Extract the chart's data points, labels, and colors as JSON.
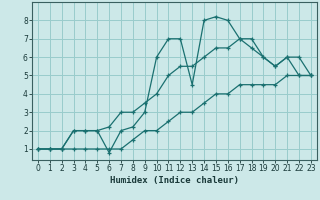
{
  "xlabel": "Humidex (Indice chaleur)",
  "background_color": "#cce8e8",
  "grid_color": "#99cccc",
  "line_color": "#1a7070",
  "xlim": [
    -0.5,
    23.5
  ],
  "ylim": [
    0.4,
    9.0
  ],
  "xticks": [
    0,
    1,
    2,
    3,
    4,
    5,
    6,
    7,
    8,
    9,
    10,
    11,
    12,
    13,
    14,
    15,
    16,
    17,
    18,
    19,
    20,
    21,
    22,
    23
  ],
  "yticks": [
    1,
    2,
    3,
    4,
    5,
    6,
    7,
    8
  ],
  "line1_x": [
    0,
    1,
    2,
    3,
    4,
    5,
    6,
    7,
    8,
    9,
    10,
    11,
    12,
    13,
    14,
    15,
    16,
    17,
    18,
    19,
    20,
    21,
    22,
    23
  ],
  "line1_y": [
    1,
    1,
    1,
    1,
    1,
    1,
    1,
    1,
    1.5,
    2,
    2,
    2.5,
    3,
    3,
    3.5,
    4,
    4,
    4.5,
    4.5,
    4.5,
    4.5,
    5,
    5,
    5
  ],
  "line2_x": [
    0,
    1,
    2,
    3,
    4,
    5,
    6,
    7,
    8,
    9,
    10,
    11,
    12,
    13,
    14,
    15,
    16,
    17,
    18,
    19,
    20,
    21,
    22,
    23
  ],
  "line2_y": [
    1,
    1,
    1,
    2,
    2,
    2,
    0.8,
    2,
    2.2,
    3,
    6,
    7,
    7,
    4.5,
    8,
    8.2,
    8,
    7,
    7,
    6,
    5.5,
    6,
    5,
    5
  ],
  "line3_x": [
    0,
    1,
    2,
    3,
    4,
    5,
    6,
    7,
    8,
    9,
    10,
    11,
    12,
    13,
    14,
    15,
    16,
    17,
    18,
    19,
    20,
    21,
    22,
    23
  ],
  "line3_y": [
    1,
    1,
    1,
    2,
    2,
    2,
    2.2,
    3,
    3,
    3.5,
    4,
    5,
    5.5,
    5.5,
    6,
    6.5,
    6.5,
    7,
    6.5,
    6,
    5.5,
    6,
    6,
    5
  ]
}
